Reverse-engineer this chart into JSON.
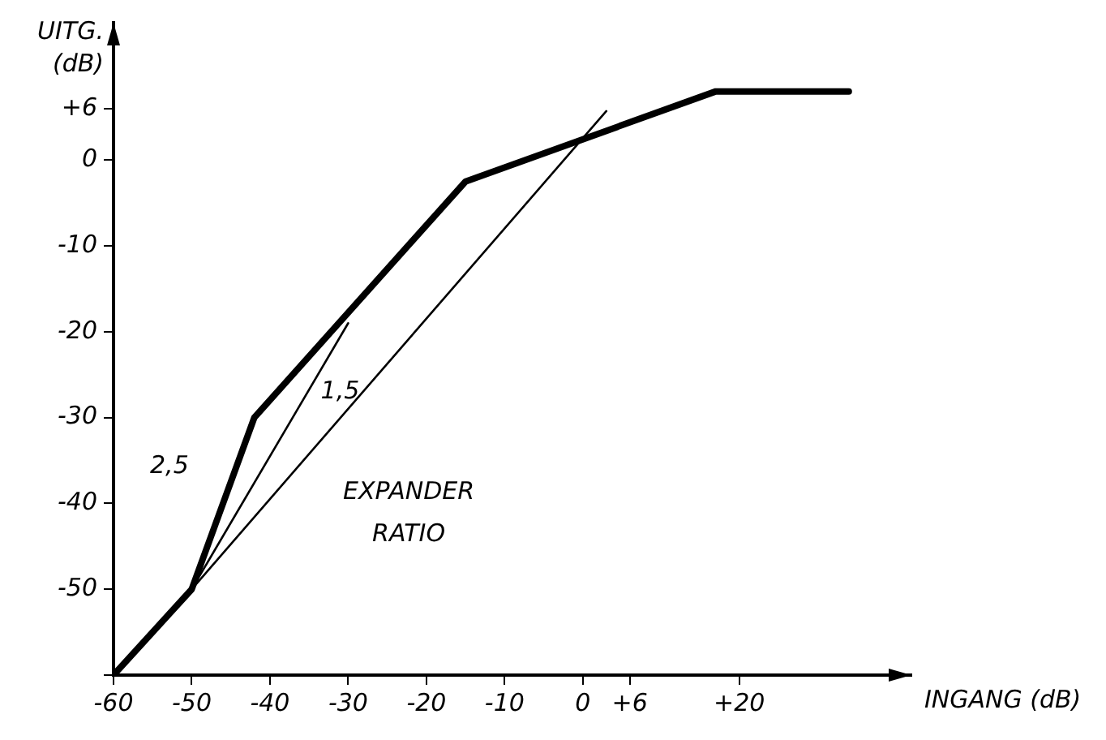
{
  "chart_data": {
    "type": "line",
    "xlabel": "INGANG (dB)",
    "ylabel": "UITG. (dB)",
    "xlim": [
      -60,
      42
    ],
    "ylim": [
      -60,
      16
    ],
    "xticks": [
      -60,
      -50,
      -40,
      -30,
      -20,
      -10,
      0,
      {
        "value": 6,
        "label": "+6"
      },
      {
        "value": 20,
        "label": "+20"
      }
    ],
    "yticks": [
      {
        "value": -60,
        "label": null
      },
      -50,
      -40,
      -30,
      -20,
      -10,
      0,
      {
        "value": 6,
        "label": "+6"
      }
    ],
    "series": [
      {
        "color": "#000000",
        "x": [
          -60,
          -50,
          -42,
          -15,
          17,
          34
        ],
        "values": [
          -60,
          -50,
          -30,
          -2.5,
          8,
          8
        ]
      },
      {
        "color": "#000000",
        "x": [
          -50,
          -30
        ],
        "values": [
          -50,
          -19
        ]
      },
      {
        "color": "#000000",
        "x": [
          -50,
          3
        ],
        "values": [
          -50,
          5.7
        ]
      }
    ],
    "annotations": [
      "2,5",
      "1,5",
      "EXPANDER RATIO"
    ],
    "marker": "none",
    "line_style": "solid",
    "grid": false,
    "legend": false
  }
}
